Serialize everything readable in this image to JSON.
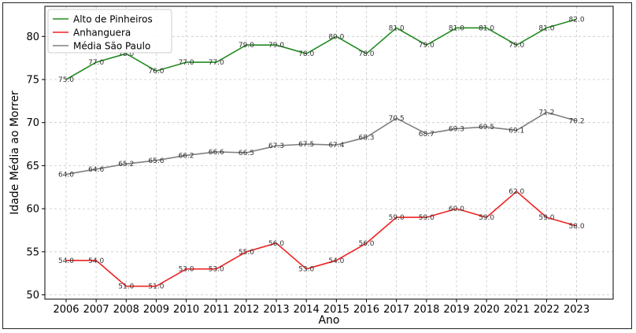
{
  "chart_data": {
    "type": "line",
    "title": "",
    "xlabel": "Ano",
    "ylabel": "Idade Média ao Morrer",
    "x": [
      2006,
      2007,
      2008,
      2009,
      2010,
      2011,
      2012,
      2013,
      2014,
      2015,
      2016,
      2017,
      2018,
      2019,
      2020,
      2021,
      2022,
      2023
    ],
    "ylim": [
      49.5,
      83.5
    ],
    "yticks": [
      50,
      55,
      60,
      65,
      70,
      75,
      80
    ],
    "grid": true,
    "legend_position": "top-left",
    "series": [
      {
        "name": "Alto de Pinheiros",
        "color": "#228b22",
        "values": [
          75.0,
          77.0,
          78.0,
          76.0,
          77.0,
          77.0,
          79.0,
          79.0,
          78.0,
          80.0,
          78.0,
          81.0,
          79.0,
          81.0,
          81.0,
          79.0,
          81.0,
          82.0
        ],
        "labels": [
          "75.0",
          "77.0",
          "78.0",
          "76.0",
          "77.0",
          "77.0",
          "79.0",
          "79.0",
          "78.0",
          "80.0",
          "78.0",
          "81.0",
          "79.0",
          "81.0",
          "81.0",
          "79.0",
          "81.0",
          "82.0"
        ]
      },
      {
        "name": "Anhanguera",
        "color": "#ee2222",
        "values": [
          54.0,
          54.0,
          51.0,
          51.0,
          53.0,
          53.0,
          55.0,
          56.0,
          53.0,
          54.0,
          56.0,
          59.0,
          59.0,
          60.0,
          59.0,
          62.0,
          59.0,
          58.0
        ],
        "labels": [
          "54.0",
          "54.0",
          "51.0",
          "51.0",
          "53.0",
          "53.0",
          "55.0",
          "56.0",
          "53.0",
          "54.0",
          "56.0",
          "59.0",
          "59.0",
          "60.0",
          "59.0",
          "62.0",
          "59.0",
          "58.0"
        ]
      },
      {
        "name": "Média São Paulo",
        "color": "#808080",
        "values": [
          64.0,
          64.6,
          65.2,
          65.6,
          66.2,
          66.6,
          66.5,
          67.3,
          67.5,
          67.4,
          68.3,
          70.5,
          68.7,
          69.3,
          69.5,
          69.1,
          71.2,
          70.2
        ],
        "labels": [
          "64.0",
          "64.6",
          "65.2",
          "65.6",
          "66.2",
          "66.6",
          "66.5",
          "67.3",
          "67.5",
          "67.4",
          "68.3",
          "70.5",
          "68.7",
          "69.3",
          "69.5",
          "69.1",
          "71.2",
          "70.2"
        ]
      }
    ]
  }
}
